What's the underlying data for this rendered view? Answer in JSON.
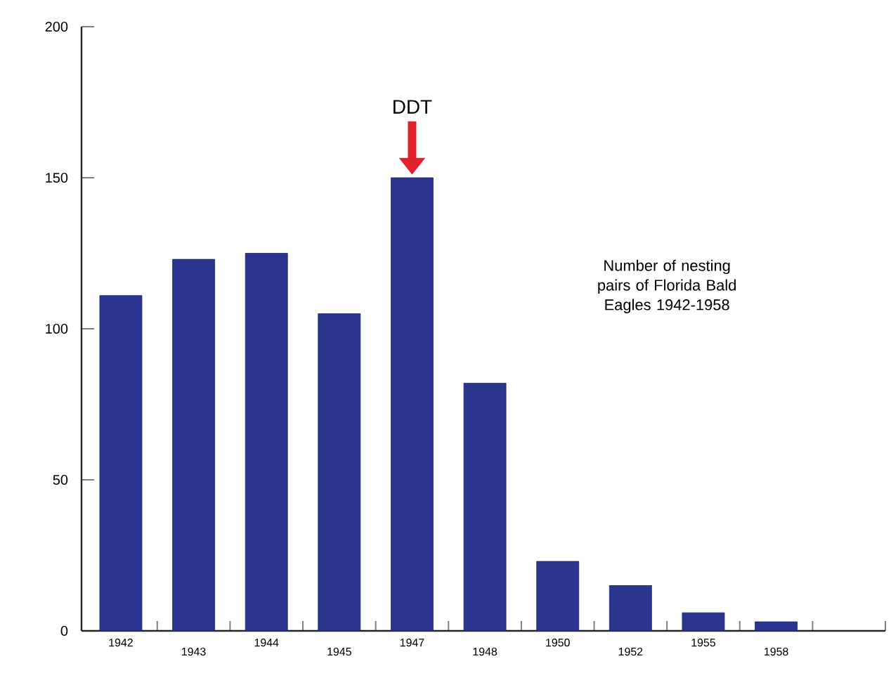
{
  "chart_data": {
    "type": "bar",
    "title": "Number of nesting pairs of Florida Bald Eagles 1942-1958",
    "categories": [
      "1942",
      "1943",
      "1944",
      "1945",
      "1947",
      "1948",
      "1950",
      "1952",
      "1955",
      "1958"
    ],
    "values": [
      111,
      123,
      125,
      105,
      150,
      82,
      23,
      15,
      6,
      3
    ],
    "color": "#2b3590",
    "ylim": [
      0,
      200
    ],
    "yticks": [
      0,
      50,
      100,
      150,
      200
    ],
    "annotations": [
      "DDT"
    ]
  }
}
